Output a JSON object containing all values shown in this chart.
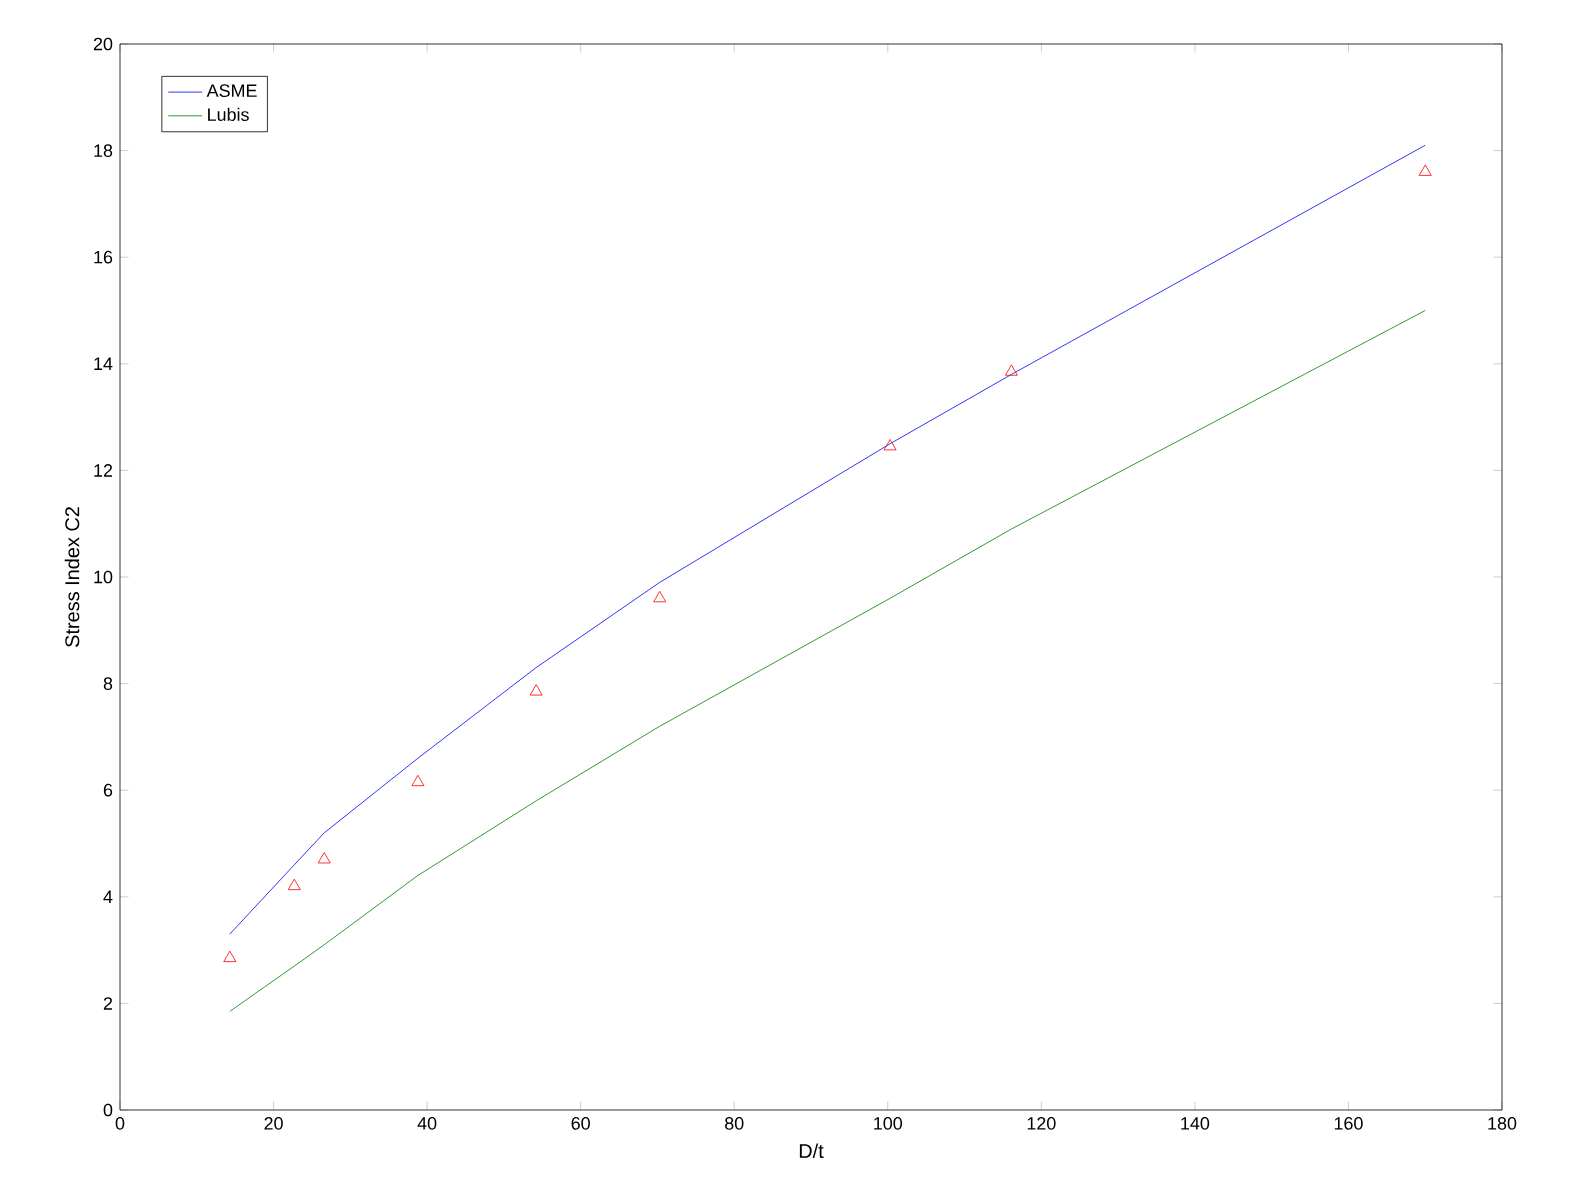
{
  "chart_data": {
    "type": "line",
    "xlabel": "D/t",
    "ylabel": "Stress Index C2",
    "xlim": [
      0,
      180
    ],
    "xticks": [
      0,
      20,
      40,
      60,
      80,
      100,
      120,
      140,
      160,
      180
    ],
    "ylim": [
      0,
      20
    ],
    "yticks": [
      0,
      2,
      4,
      6,
      8,
      10,
      12,
      14,
      16,
      18,
      20
    ],
    "x": [
      14.3,
      22.7,
      26.6,
      38.8,
      54.2,
      70.3,
      100.3,
      116.1,
      170
    ],
    "legend": "top left",
    "grid": false,
    "series": [
      {
        "name": "ASME",
        "color": "#0000ff",
        "values": [
          3.3,
          4.6,
          5.2,
          6.6,
          8.3,
          9.9,
          12.5,
          13.8,
          18.1
        ]
      },
      {
        "name": "Lubis",
        "color": "#008000",
        "values": [
          1.85,
          2.7,
          3.1,
          4.4,
          5.8,
          7.2,
          9.6,
          10.9,
          15.0
        ]
      },
      {
        "type": "scatter",
        "marker": "triangle",
        "color": "#ff0000",
        "values": [
          2.85,
          4.2,
          4.7,
          6.15,
          7.85,
          9.6,
          12.45,
          13.85,
          17.6
        ]
      }
    ]
  }
}
